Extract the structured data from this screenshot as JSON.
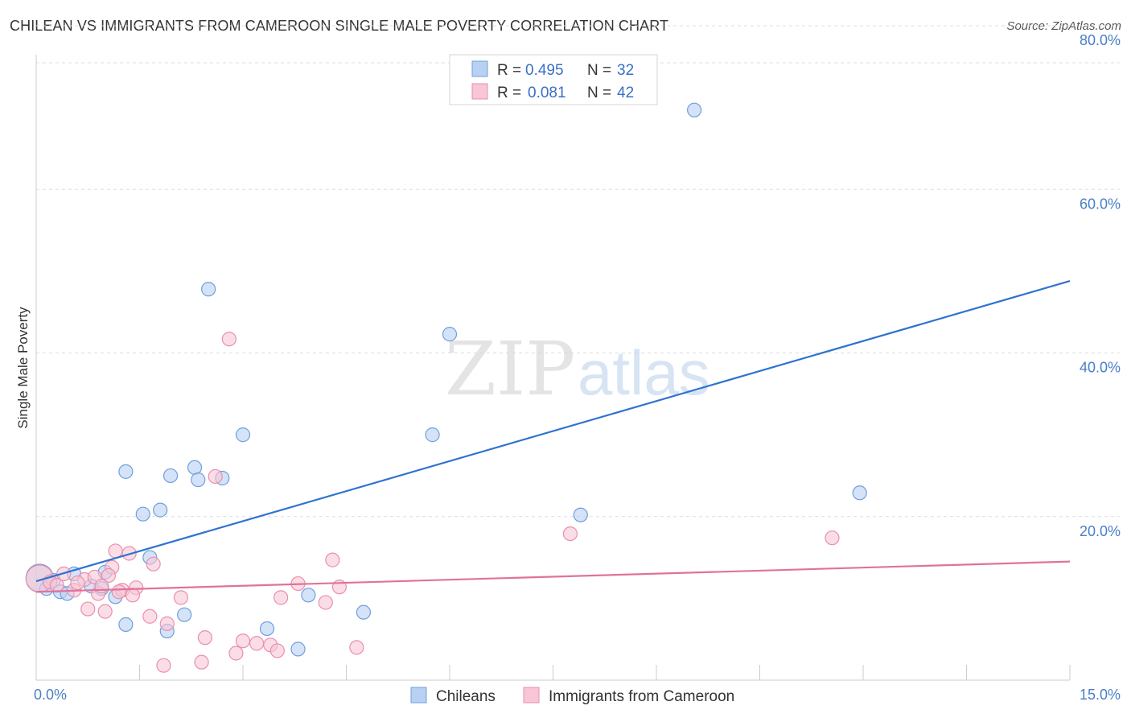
{
  "title": "CHILEAN VS IMMIGRANTS FROM CAMEROON SINGLE MALE POVERTY CORRELATION CHART",
  "source": "Source: ZipAtlas.com",
  "watermark": {
    "zip": "ZIP",
    "atlas": "atlas"
  },
  "colors": {
    "blue_fill": "#b8d1f3",
    "blue_stroke": "#6f9fdc",
    "blue_line": "#2f73d0",
    "pink_fill": "#f8c6d6",
    "pink_stroke": "#e98fae",
    "pink_line": "#e0729c",
    "axis_text": "#4a7fc6",
    "grid": "#dddddd"
  },
  "legend": {
    "rows": [
      {
        "r_label": "R =",
        "r_value": "0.495",
        "n_label": "N =",
        "n_value": "32"
      },
      {
        "r_label": "R =",
        "r_value": "0.081",
        "n_label": "N =",
        "n_value": "42"
      }
    ]
  },
  "bottom_legend": [
    "Chileans",
    "Immigrants from Cameroon"
  ],
  "chart_data": {
    "type": "scatter",
    "title": "CHILEAN VS IMMIGRANTS FROM CAMEROON SINGLE MALE POVERTY CORRELATION CHART",
    "xlabel": "",
    "ylabel": "Single Male Poverty",
    "xlim": [
      0,
      15
    ],
    "ylim": [
      0,
      80
    ],
    "x_tick_labels": [
      "0.0%",
      "15.0%"
    ],
    "y_ticks": [
      20,
      40,
      60,
      80
    ],
    "y_tick_labels": [
      "20.0%",
      "40.0%",
      "60.0%",
      "80.0%"
    ],
    "grid": true,
    "series": [
      {
        "name": "Chileans",
        "color": "#b8d1f3",
        "trendline": {
          "x": [
            0,
            15
          ],
          "y": [
            12.1,
            48.8
          ]
        },
        "points": [
          {
            "x": 0.05,
            "y": 12.5,
            "big": true
          },
          {
            "x": 0.15,
            "y": 11.2
          },
          {
            "x": 0.35,
            "y": 10.8
          },
          {
            "x": 0.55,
            "y": 13.0
          },
          {
            "x": 0.8,
            "y": 11.5
          },
          {
            "x": 1.0,
            "y": 13.2
          },
          {
            "x": 1.15,
            "y": 10.2
          },
          {
            "x": 1.3,
            "y": 25.5
          },
          {
            "x": 1.55,
            "y": 20.3
          },
          {
            "x": 1.8,
            "y": 20.8
          },
          {
            "x": 1.65,
            "y": 15.0
          },
          {
            "x": 1.95,
            "y": 25.0
          },
          {
            "x": 2.3,
            "y": 26.0
          },
          {
            "x": 2.35,
            "y": 24.5
          },
          {
            "x": 2.7,
            "y": 24.7
          },
          {
            "x": 2.5,
            "y": 47.8
          },
          {
            "x": 3.0,
            "y": 30.0
          },
          {
            "x": 1.3,
            "y": 6.8
          },
          {
            "x": 1.9,
            "y": 6.0
          },
          {
            "x": 2.15,
            "y": 8.0
          },
          {
            "x": 3.35,
            "y": 6.3
          },
          {
            "x": 3.95,
            "y": 10.4
          },
          {
            "x": 3.8,
            "y": 3.8
          },
          {
            "x": 4.75,
            "y": 8.3
          },
          {
            "x": 6.0,
            "y": 42.3
          },
          {
            "x": 5.75,
            "y": 30.0
          },
          {
            "x": 7.9,
            "y": 20.2
          },
          {
            "x": 9.55,
            "y": 69.7
          },
          {
            "x": 11.95,
            "y": 22.9
          },
          {
            "x": 0.45,
            "y": 10.6
          },
          {
            "x": 0.95,
            "y": 11.2
          },
          {
            "x": 0.25,
            "y": 12.2
          }
        ]
      },
      {
        "name": "Immigrants from Cameroon",
        "color": "#f8c6d6",
        "trendline": {
          "x": [
            0,
            15
          ],
          "y": [
            10.8,
            14.5
          ]
        },
        "points": [
          {
            "x": 0.05,
            "y": 12.4,
            "big": true
          },
          {
            "x": 0.2,
            "y": 12.0
          },
          {
            "x": 0.4,
            "y": 13.0
          },
          {
            "x": 0.55,
            "y": 11.0
          },
          {
            "x": 0.7,
            "y": 12.3
          },
          {
            "x": 0.75,
            "y": 8.7
          },
          {
            "x": 0.85,
            "y": 12.6
          },
          {
            "x": 0.9,
            "y": 10.6
          },
          {
            "x": 1.0,
            "y": 8.4
          },
          {
            "x": 1.1,
            "y": 13.8
          },
          {
            "x": 1.15,
            "y": 15.8
          },
          {
            "x": 1.25,
            "y": 11.0
          },
          {
            "x": 1.35,
            "y": 15.5
          },
          {
            "x": 1.45,
            "y": 11.3
          },
          {
            "x": 1.65,
            "y": 7.8
          },
          {
            "x": 1.7,
            "y": 14.2
          },
          {
            "x": 1.85,
            "y": 1.8
          },
          {
            "x": 1.9,
            "y": 6.9
          },
          {
            "x": 2.1,
            "y": 10.1
          },
          {
            "x": 2.45,
            "y": 5.2
          },
          {
            "x": 2.4,
            "y": 2.2
          },
          {
            "x": 2.6,
            "y": 24.9
          },
          {
            "x": 2.8,
            "y": 41.7
          },
          {
            "x": 2.9,
            "y": 3.3
          },
          {
            "x": 3.0,
            "y": 4.8
          },
          {
            "x": 3.2,
            "y": 4.5
          },
          {
            "x": 3.4,
            "y": 4.3
          },
          {
            "x": 3.5,
            "y": 3.6
          },
          {
            "x": 3.55,
            "y": 10.1
          },
          {
            "x": 3.8,
            "y": 11.8
          },
          {
            "x": 4.2,
            "y": 9.5
          },
          {
            "x": 4.3,
            "y": 14.7
          },
          {
            "x": 4.4,
            "y": 11.4
          },
          {
            "x": 4.65,
            "y": 4.0
          },
          {
            "x": 7.75,
            "y": 17.9
          },
          {
            "x": 11.55,
            "y": 17.4
          },
          {
            "x": 0.3,
            "y": 11.6
          },
          {
            "x": 0.6,
            "y": 11.9
          },
          {
            "x": 1.05,
            "y": 12.8
          },
          {
            "x": 1.4,
            "y": 10.4
          },
          {
            "x": 0.95,
            "y": 11.5
          },
          {
            "x": 1.2,
            "y": 10.8
          }
        ]
      }
    ]
  }
}
